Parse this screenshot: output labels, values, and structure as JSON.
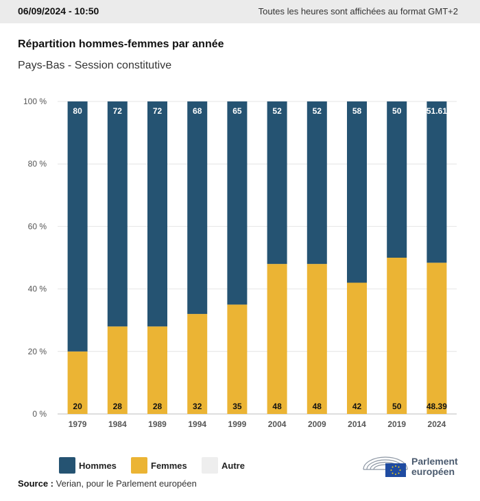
{
  "header": {
    "datetime": "06/09/2024 - 10:50",
    "timezone_note": "Toutes les heures sont affichées au format GMT+2"
  },
  "title": "Répartition hommes-femmes par année",
  "subtitle": "Pays-Bas - Session constitutive",
  "chart_data": {
    "type": "bar",
    "stacked": true,
    "categories": [
      "1979",
      "1984",
      "1989",
      "1994",
      "1999",
      "2004",
      "2009",
      "2014",
      "2019",
      "2024"
    ],
    "series": [
      {
        "name": "Femmes",
        "color": "#ebb434",
        "values": [
          20,
          28,
          28,
          32,
          35,
          48,
          48,
          42,
          50,
          48.39
        ]
      },
      {
        "name": "Hommes",
        "color": "#255372",
        "values": [
          80,
          72,
          72,
          68,
          65,
          52,
          52,
          58,
          50,
          51.61
        ]
      }
    ],
    "y_ticks": [
      "0 %",
      "20 %",
      "40 %",
      "60 %",
      "80 %",
      "100 %"
    ],
    "ylim": [
      0,
      100
    ],
    "grid": true,
    "legend_position": "bottom-left"
  },
  "legend": [
    {
      "label": "Hommes",
      "color": "#255372"
    },
    {
      "label": "Femmes",
      "color": "#ebb434"
    },
    {
      "label": "Autre",
      "color": "#eeeeee"
    }
  ],
  "source": {
    "label": "Source :",
    "text": "Verian, pour le Parlement européen"
  },
  "logo": {
    "line1": "Parlement",
    "line2": "européen"
  }
}
